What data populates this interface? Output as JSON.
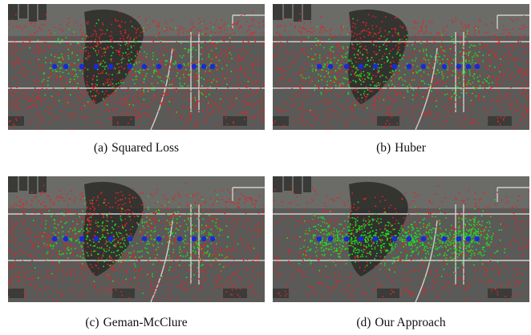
{
  "figure": {
    "panels": [
      {
        "tag": "(a)",
        "caption": "Squared Loss",
        "variant": "squared"
      },
      {
        "tag": "(b)",
        "caption": "Huber",
        "variant": "huber"
      },
      {
        "tag": "(c)",
        "caption": "Geman-McClure",
        "variant": "geman"
      },
      {
        "tag": "(d)",
        "caption": "Our Approach",
        "variant": "ours"
      }
    ],
    "colors": {
      "inlier": "#22dd22",
      "outlier": "#e02424",
      "keypoint": "#1a2ad8",
      "asphalt": "#5a5a58"
    },
    "icons": {
      "keypoint": "blue-circle",
      "inlier": "green-dot",
      "outlier": "red-dot"
    }
  }
}
